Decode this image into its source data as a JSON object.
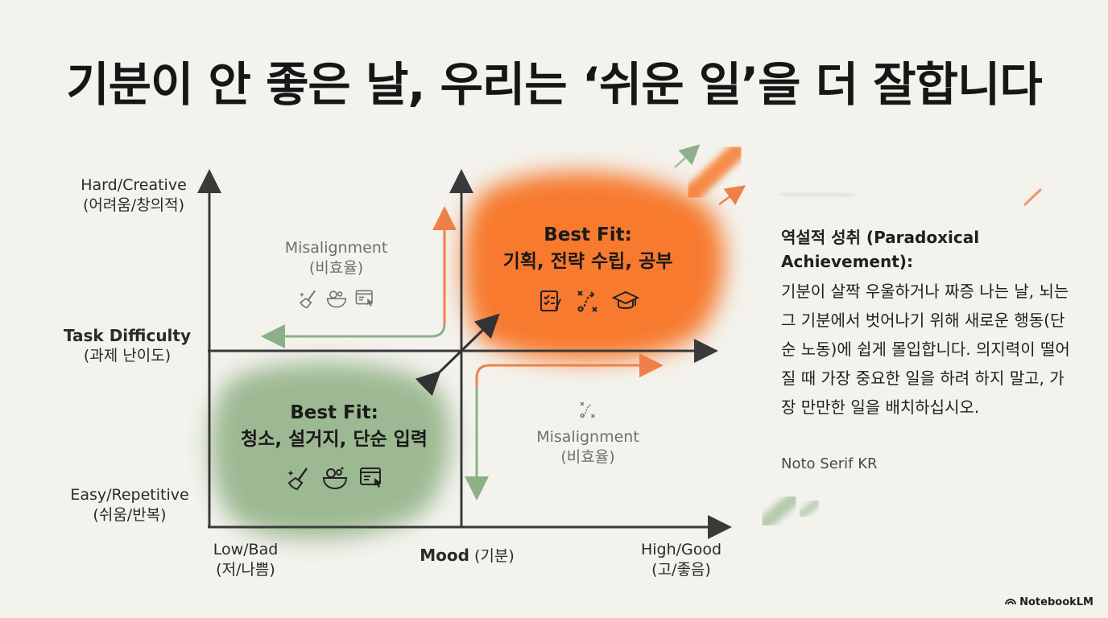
{
  "title": "기분이 안 좋은 날, 우리는 ‘쉬운 일’을 더 잘합니다",
  "axes": {
    "y_top": [
      "Hard/Creative",
      "(어려움/창의적)"
    ],
    "y_mid_bold": "Task Difficulty",
    "y_mid": "(과제 난이도)",
    "y_bottom": [
      "Easy/Repetitive",
      "(쉬움/반복)"
    ],
    "x_left": [
      "Low/Bad",
      "(저/나쁨)"
    ],
    "x_mid_bold": "Mood",
    "x_mid": "(기분)",
    "x_right": [
      "High/Good",
      "(고/좋음)"
    ]
  },
  "quadrants": {
    "top_right": {
      "line1": "Best Fit:",
      "line2": "기획, 전략 수립, 공부",
      "icons": [
        "checklist-icon",
        "strategy-path-icon",
        "graduation-cap-icon"
      ]
    },
    "bottom_left": {
      "line1": "Best Fit:",
      "line2": "청소, 설거지, 단순 입력",
      "icons": [
        "broom-icon",
        "dish-basin-icon",
        "data-entry-icon"
      ]
    },
    "top_left": {
      "line1": "Misalignment",
      "line2": "(비효율)",
      "icons": [
        "broom-icon",
        "dish-basin-icon",
        "data-entry-icon"
      ]
    },
    "bottom_right": {
      "line1": "Misalignment",
      "line2": "(비효율)",
      "icons": [
        "strategy-path-icon"
      ]
    }
  },
  "sidebar": {
    "heading": "역설적 성취 (Paradoxical Achievement):",
    "body": "기분이 살짝 우울하거나 짜증 나는 날, 뇌는 그 기분에서 벗어나기 위해 새로운 행동(단순 노동)에 쉽게 몰입합니다. 의지력이 떨어질 때 가장 중요한 일을 하려 하지 말고, 가장 만만한 일을 배치하십시오.",
    "font_note": "Noto Serif KR"
  },
  "brand": "NotebookLM",
  "colors": {
    "orange": "#f77a2e",
    "green": "#8fb084",
    "axis": "#3a3a3a"
  }
}
